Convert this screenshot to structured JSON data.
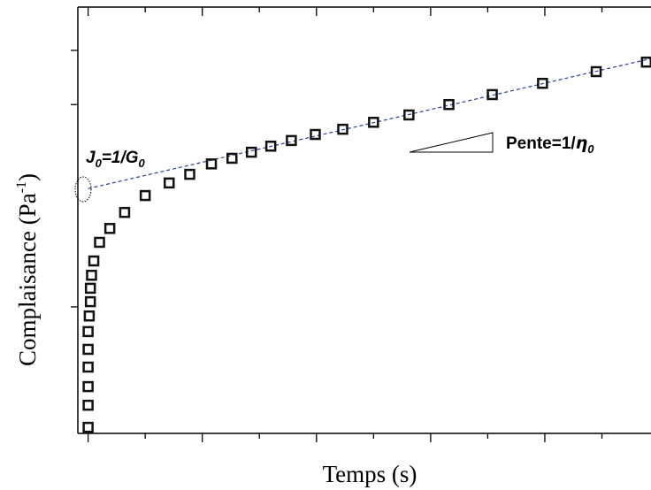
{
  "chart_data": {
    "type": "scatter",
    "xlabel": "Temps (s)",
    "ylabel": [
      "Complaisance (Pa",
      "-1",
      ")"
    ],
    "annotations": {
      "intercept": [
        "J",
        "0",
        "=1/G",
        "0"
      ],
      "slope": [
        "Pente=1/",
        "η",
        "0"
      ]
    },
    "x": [
      0,
      0,
      0,
      0,
      0,
      0,
      0.01,
      0.02,
      0.02,
      0.03,
      0.05,
      0.1,
      0.19,
      0.32,
      0.5,
      0.71,
      0.89,
      1.08,
      1.26,
      1.43,
      1.6,
      1.78,
      1.99,
      2.23,
      2.5,
      2.81,
      3.16,
      3.54,
      3.98,
      4.45,
      4.89
    ],
    "values": [
      0.14,
      0.65,
      1.08,
      1.53,
      1.94,
      2.35,
      2.71,
      3.04,
      3.35,
      3.65,
      3.98,
      4.41,
      4.73,
      5.1,
      5.49,
      5.78,
      5.98,
      6.22,
      6.35,
      6.49,
      6.63,
      6.76,
      6.9,
      7.02,
      7.18,
      7.35,
      7.59,
      7.82,
      8.08,
      8.35,
      8.57
    ],
    "color": "#111111",
    "fit_line": {
      "x": [
        0,
        4.93
      ],
      "y": [
        5.65,
        8.65
      ],
      "color": "#2b3f9c"
    },
    "xlim": [
      -0.09,
      4.93
    ],
    "ylim": [
      0,
      9.84
    ],
    "xticks": [
      0,
      0.5,
      1,
      1.5,
      2,
      2.5,
      3,
      3.5,
      4,
      4.5
    ],
    "yticks": [
      2.92,
      7.59,
      8.84
    ]
  }
}
